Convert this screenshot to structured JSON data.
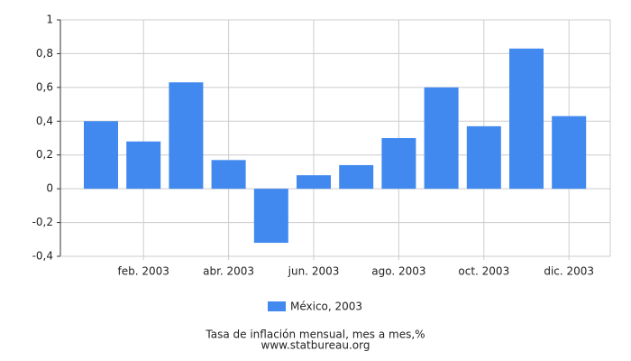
{
  "chart_data": {
    "type": "bar",
    "categories": [
      null,
      "feb. 2003",
      null,
      "abr. 2003",
      null,
      "jun. 2003",
      null,
      "ago. 2003",
      null,
      "oct. 2003",
      null,
      "dic. 2003"
    ],
    "series": [
      {
        "name": "México, 2003",
        "color": "#4189ef",
        "values": [
          0.4,
          0.28,
          0.63,
          0.17,
          -0.32,
          0.08,
          0.14,
          0.3,
          0.6,
          0.37,
          0.83,
          0.43
        ]
      }
    ],
    "ylim": [
      -0.4,
      1
    ],
    "yticks": [
      {
        "value": -0.4,
        "label": "-0,4"
      },
      {
        "value": -0.2,
        "label": "-0,2"
      },
      0,
      {
        "value": 0.2,
        "label": "0,2"
      },
      {
        "value": 0.4,
        "label": "0,4"
      },
      {
        "value": 0.6,
        "label": "0,6"
      },
      {
        "value": 0.8,
        "label": "0,8"
      },
      1
    ],
    "grid": true,
    "legend": "bottom",
    "footer": [
      "Tasa de inflación mensual, mes a mes,%",
      "www.statbureau.org"
    ]
  }
}
